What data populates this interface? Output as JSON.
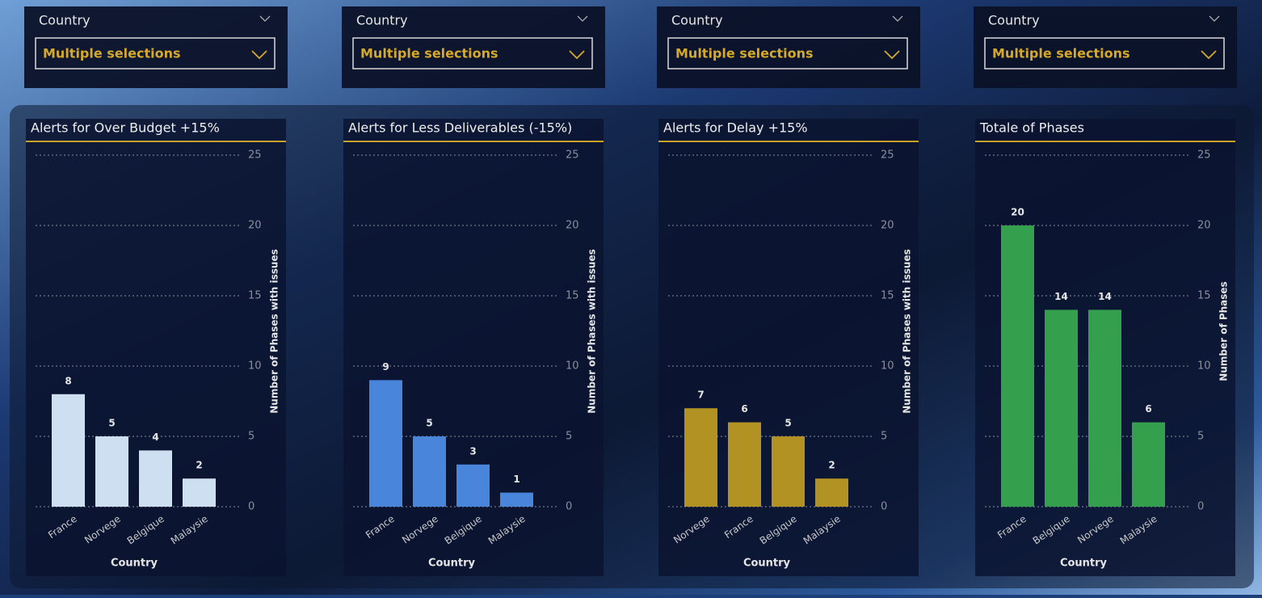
{
  "slicers": [
    {
      "label": "Country",
      "value": "Multiple selections"
    },
    {
      "label": "Country",
      "value": "Multiple selections"
    },
    {
      "label": "Country",
      "value": "Multiple selections"
    },
    {
      "label": "Country",
      "value": "Multiple selections"
    }
  ],
  "chart_data": [
    {
      "type": "bar",
      "title": "Alerts for Over Budget +15%",
      "categories": [
        "France",
        "Norvege",
        "Belgique",
        "Malaysie"
      ],
      "values": [
        8,
        5,
        4,
        2
      ],
      "color": "#cfdff2",
      "ylim": [
        0,
        25
      ],
      "yticks": [
        0,
        5,
        10,
        15,
        20,
        25
      ],
      "grid": true,
      "x_label": "Country",
      "y_label": "Number of Phases with issues"
    },
    {
      "type": "bar",
      "title": "Alerts for Less Deliverables (-15%)",
      "categories": [
        "France",
        "Norvege",
        "Belgique",
        "Malaysie"
      ],
      "values": [
        9,
        5,
        3,
        1
      ],
      "color": "#4a85dc",
      "ylim": [
        0,
        25
      ],
      "yticks": [
        0,
        5,
        10,
        15,
        20,
        25
      ],
      "grid": true,
      "x_label": "Country",
      "y_label": "Number of Phases with issues"
    },
    {
      "type": "bar",
      "title": "Alerts for Delay +15%",
      "categories": [
        "Norvege",
        "France",
        "Belgique",
        "Malaysie"
      ],
      "values": [
        7,
        6,
        5,
        2
      ],
      "color": "#b39224",
      "ylim": [
        0,
        25
      ],
      "yticks": [
        0,
        5,
        10,
        15,
        20,
        25
      ],
      "grid": true,
      "x_label": "Country",
      "y_label": "Number of Phases with issues"
    },
    {
      "type": "bar",
      "title": "Totale of Phases",
      "categories": [
        "France",
        "Belgique",
        "Norvege",
        "Malaysie"
      ],
      "values": [
        20,
        14,
        14,
        6
      ],
      "color": "#34a04e",
      "ylim": [
        0,
        25
      ],
      "yticks": [
        0,
        5,
        10,
        15,
        20,
        25
      ],
      "grid": true,
      "x_label": "Country",
      "y_label": "Number of Phases"
    }
  ]
}
